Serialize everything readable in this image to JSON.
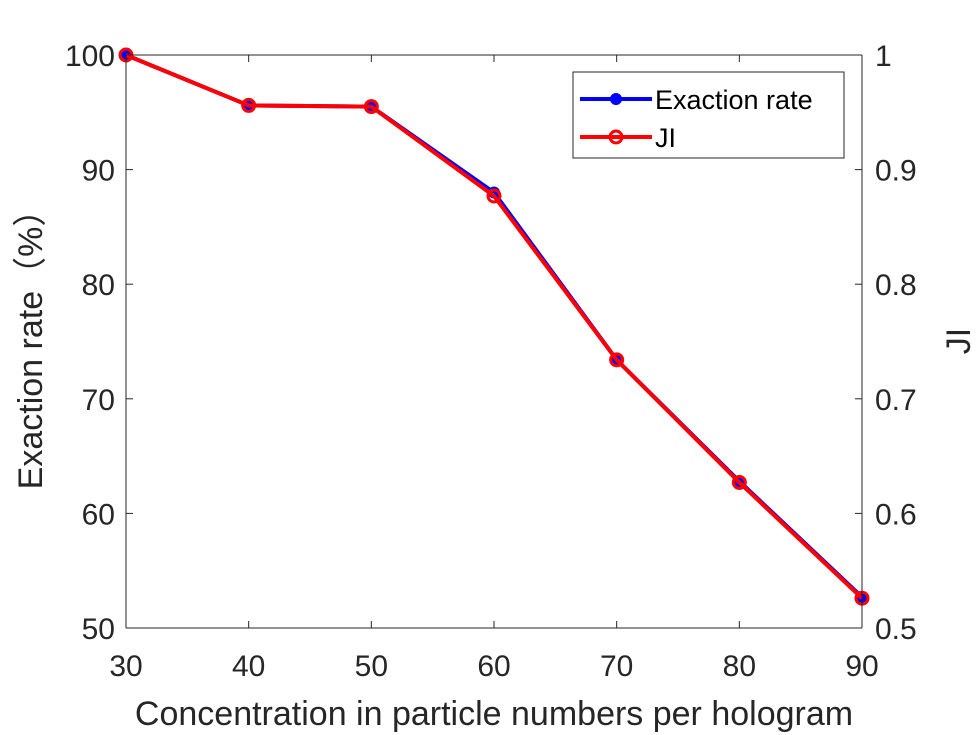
{
  "chart_data": {
    "type": "line",
    "x": [
      30,
      40,
      50,
      60,
      70,
      80,
      90
    ],
    "xlabel": "Concentration in particle numbers per hologram",
    "xlim": [
      30,
      90
    ],
    "xticks": [
      "30",
      "40",
      "50",
      "60",
      "70",
      "80",
      "90"
    ],
    "ylabel_left": "Exaction rate（%）",
    "ylim_left": [
      50,
      100
    ],
    "yticks_left": [
      "50",
      "60",
      "70",
      "80",
      "90",
      "100"
    ],
    "ylabel_right": "JI",
    "ylim_right": [
      0.5,
      1
    ],
    "yticks_right": [
      "0.5",
      "0.6",
      "0.7",
      "0.8",
      "0.9",
      "1"
    ],
    "grid": false,
    "legend_position": "top-right",
    "series": [
      {
        "name": "Exaction rate",
        "axis": "left",
        "color": "#0000ff",
        "marker": "filled-circle",
        "values": [
          100,
          95.6,
          95.5,
          88.0,
          73.4,
          62.8,
          52.7
        ]
      },
      {
        "name": "JI",
        "axis": "right",
        "color": "#ff0000",
        "marker": "open-circle",
        "values": [
          1.0,
          0.956,
          0.955,
          0.877,
          0.734,
          0.627,
          0.526
        ]
      }
    ]
  }
}
